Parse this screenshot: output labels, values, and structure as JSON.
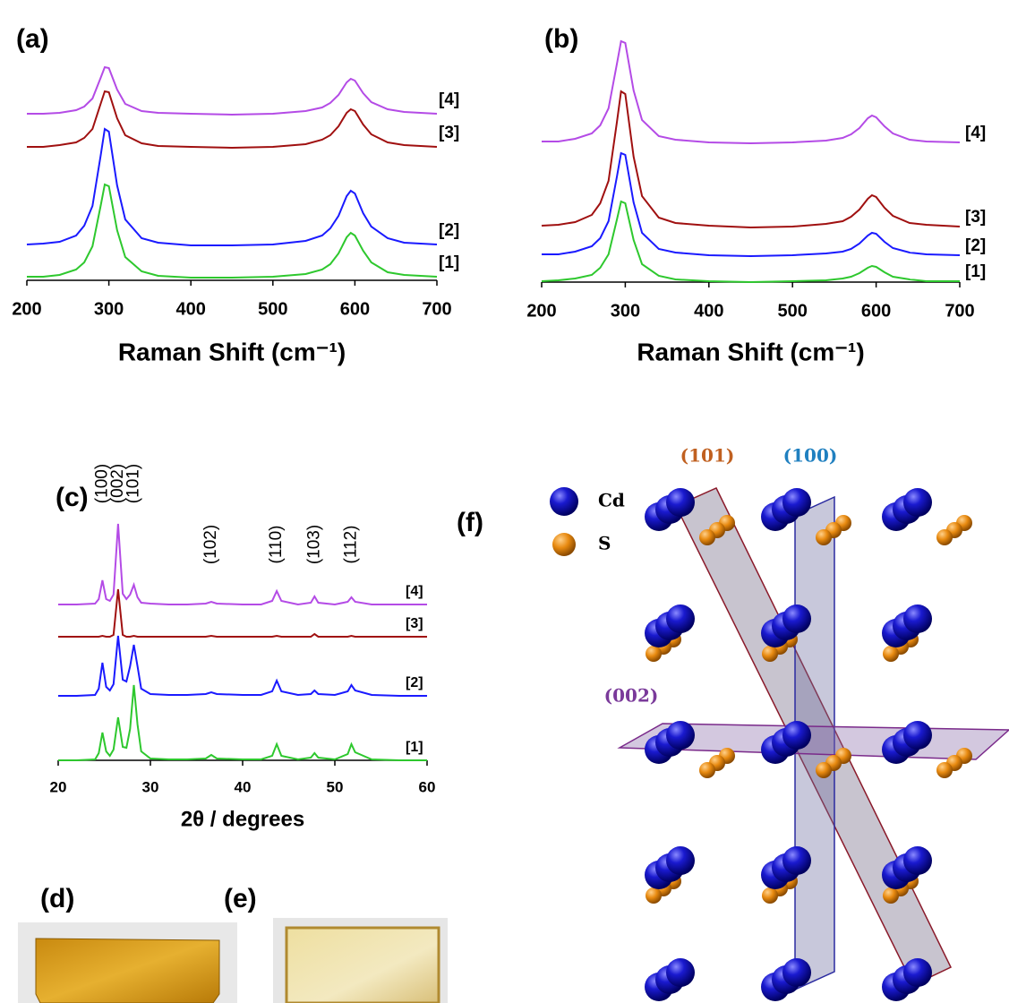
{
  "chart_data": [
    {
      "type": "line",
      "title": "(a)",
      "xlabel": "Raman Shift (cm⁻¹)",
      "xlim": [
        200,
        700
      ],
      "xticks": [
        200,
        300,
        400,
        500,
        600,
        700
      ],
      "ylim": [
        0,
        290
      ],
      "x": [
        200,
        220,
        240,
        260,
        270,
        280,
        290,
        295,
        300,
        310,
        320,
        340,
        360,
        400,
        450,
        500,
        540,
        560,
        570,
        580,
        590,
        595,
        600,
        610,
        620,
        640,
        660,
        700
      ],
      "series": [
        {
          "name": "[1]",
          "color": "#2ec82e",
          "values": [
            4,
            4,
            6,
            12,
            20,
            38,
            83,
            107,
            105,
            56,
            26,
            10,
            5,
            3,
            3,
            4,
            7,
            12,
            18,
            30,
            48,
            53,
            50,
            33,
            20,
            9,
            6,
            4
          ]
        },
        {
          "name": "[2]",
          "color": "#1a1aff",
          "values": [
            40,
            41,
            43,
            50,
            61,
            83,
            139,
            169,
            166,
            106,
            68,
            47,
            42,
            39,
            39,
            40,
            44,
            50,
            58,
            72,
            94,
            100,
            97,
            75,
            60,
            47,
            42,
            40
          ]
        },
        {
          "name": "[3]",
          "color": "#a01010",
          "values": [
            149,
            149,
            151,
            154,
            159,
            169,
            197,
            211,
            210,
            181,
            162,
            153,
            150,
            149,
            148,
            149,
            152,
            157,
            162,
            172,
            187,
            191,
            189,
            174,
            163,
            154,
            151,
            149
          ]
        },
        {
          "name": "[4]",
          "color": "#b44be6",
          "values": [
            186,
            186,
            187,
            190,
            194,
            203,
            226,
            238,
            237,
            213,
            197,
            189,
            187,
            186,
            185,
            186,
            189,
            193,
            198,
            207,
            221,
            225,
            223,
            209,
            199,
            191,
            188,
            186
          ]
        }
      ]
    },
    {
      "type": "line",
      "title": "(b)",
      "xlabel": "Raman Shift (cm⁻¹)",
      "xlim": [
        200,
        700
      ],
      "xticks": [
        200,
        300,
        400,
        500,
        600,
        700
      ],
      "ylim": [
        0,
        290
      ],
      "x": [
        200,
        220,
        240,
        260,
        270,
        280,
        290,
        295,
        300,
        310,
        320,
        340,
        360,
        400,
        450,
        500,
        540,
        560,
        570,
        580,
        590,
        595,
        600,
        610,
        620,
        640,
        660,
        700
      ],
      "series": [
        {
          "name": "[1]",
          "color": "#2ec82e",
          "values": [
            1,
            2,
            4,
            8,
            16,
            31,
            70,
            90,
            88,
            47,
            20,
            7,
            3,
            1,
            0,
            1,
            2,
            4,
            6,
            10,
            16,
            18,
            17,
            11,
            6,
            3,
            1,
            1
          ]
        },
        {
          "name": "[2]",
          "color": "#1a1aff",
          "values": [
            31,
            31,
            34,
            40,
            49,
            68,
            118,
            144,
            142,
            89,
            55,
            37,
            33,
            30,
            29,
            30,
            32,
            34,
            37,
            43,
            52,
            55,
            54,
            45,
            38,
            33,
            31,
            30
          ]
        },
        {
          "name": "[3]",
          "color": "#a01010",
          "values": [
            63,
            64,
            67,
            75,
            88,
            113,
            179,
            213,
            210,
            140,
            96,
            72,
            66,
            63,
            61,
            62,
            65,
            68,
            73,
            81,
            93,
            97,
            95,
            83,
            74,
            66,
            64,
            62
          ]
        },
        {
          "name": "[4]",
          "color": "#b44be6",
          "values": [
            157,
            157,
            160,
            166,
            175,
            194,
            244,
            269,
            267,
            214,
            181,
            163,
            159,
            156,
            155,
            156,
            158,
            161,
            165,
            172,
            183,
            186,
            184,
            174,
            166,
            159,
            157,
            156
          ]
        }
      ]
    },
    {
      "type": "line",
      "title": "(c)",
      "xlabel": "2θ / degrees",
      "xlim": [
        20,
        60
      ],
      "xticks": [
        20,
        30,
        40,
        50,
        60
      ],
      "ylim": [
        0,
        275
      ],
      "x": [
        20,
        22,
        24,
        24.4,
        24.8,
        25.2,
        25.6,
        26,
        26.5,
        27,
        27.4,
        27.8,
        28.2,
        28.6,
        29,
        30,
        32,
        34,
        36,
        36.6,
        37.2,
        40,
        42,
        43.2,
        43.7,
        44.2,
        46,
        47.4,
        47.8,
        48.2,
        50,
        51.4,
        51.8,
        52.2,
        54,
        57,
        60
      ],
      "series": [
        {
          "name": "[1]",
          "color": "#2ec82e",
          "values": [
            0,
            0,
            1,
            8,
            31,
            10,
            5,
            12,
            48,
            15,
            14,
            35,
            84,
            40,
            10,
            2,
            1,
            1,
            2,
            6,
            2,
            1,
            1,
            5,
            18,
            5,
            1,
            3,
            8,
            3,
            1,
            7,
            18,
            9,
            1,
            0,
            0
          ]
        },
        {
          "name": "[2]",
          "color": "#1a1aff",
          "values": [
            72,
            72,
            73,
            80,
            109,
            82,
            78,
            85,
            139,
            90,
            88,
            105,
            129,
            105,
            80,
            74,
            73,
            73,
            74,
            76,
            74,
            73,
            73,
            77,
            89,
            77,
            73,
            74,
            78,
            74,
            73,
            77,
            84,
            78,
            73,
            72,
            72
          ]
        },
        {
          "name": "[3]",
          "color": "#a01010",
          "values": [
            138,
            138,
            138,
            138,
            139,
            138,
            138,
            140,
            191,
            140,
            138,
            138,
            139,
            138,
            138,
            138,
            138,
            138,
            138,
            139,
            138,
            138,
            138,
            138,
            139,
            138,
            138,
            138,
            141,
            138,
            138,
            138,
            139,
            138,
            138,
            138,
            138
          ]
        },
        {
          "name": "[4]",
          "color": "#b44be6",
          "values": [
            174,
            174,
            175,
            180,
            201,
            180,
            178,
            185,
            264,
            186,
            180,
            185,
            196,
            182,
            176,
            175,
            174,
            174,
            175,
            177,
            175,
            174,
            174,
            178,
            189,
            178,
            174,
            176,
            183,
            176,
            174,
            177,
            182,
            177,
            174,
            174,
            174
          ]
        }
      ],
      "annotations": [
        {
          "text": "(100)",
          "x": 24.8
        },
        {
          "text": "(002)",
          "x": 26.5
        },
        {
          "text": "(101)",
          "x": 28.2
        },
        {
          "text": "(102)",
          "x": 36.6
        },
        {
          "text": "(110)",
          "x": 43.7
        },
        {
          "text": "(103)",
          "x": 47.8
        },
        {
          "text": "(112)",
          "x": 51.8
        }
      ]
    }
  ],
  "photos": {
    "d": "(d)",
    "e": "(e)"
  },
  "structure": {
    "label": "(f)",
    "legend": [
      "Cd",
      "S"
    ],
    "planes": [
      "(101)",
      "(100)",
      "(002)"
    ]
  }
}
